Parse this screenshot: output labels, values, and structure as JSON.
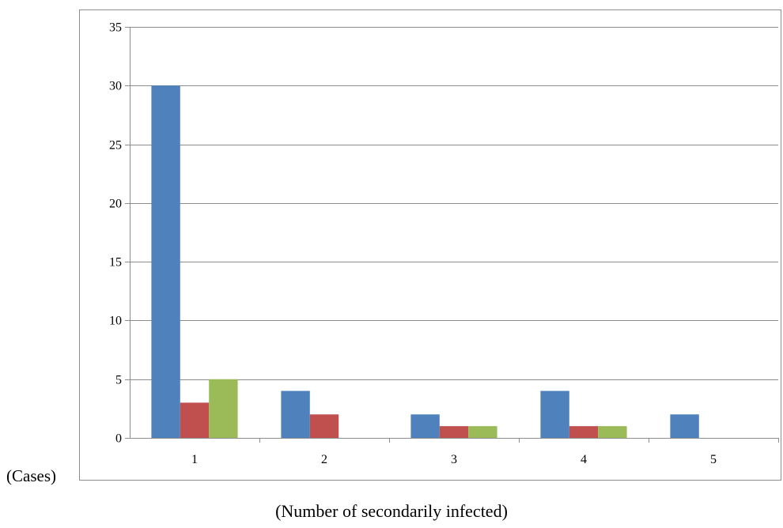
{
  "chart_data": {
    "type": "bar",
    "title": "",
    "xlabel": "(Number of secondarily infected)",
    "ylabel": "(Cases)",
    "categories": [
      "1",
      "2",
      "3",
      "4",
      "5"
    ],
    "ylim": [
      0,
      35
    ],
    "yticks": [
      0,
      5,
      10,
      15,
      20,
      25,
      30,
      35
    ],
    "grid": true,
    "legend": "none",
    "series": [
      {
        "values": [
          30,
          4,
          2,
          4,
          2
        ],
        "color": "#4F81BD"
      },
      {
        "values": [
          3,
          2,
          1,
          1,
          0
        ],
        "color": "#C0504D"
      },
      {
        "values": [
          5,
          0,
          1,
          1,
          0
        ],
        "color": "#9BBB59"
      }
    ]
  }
}
